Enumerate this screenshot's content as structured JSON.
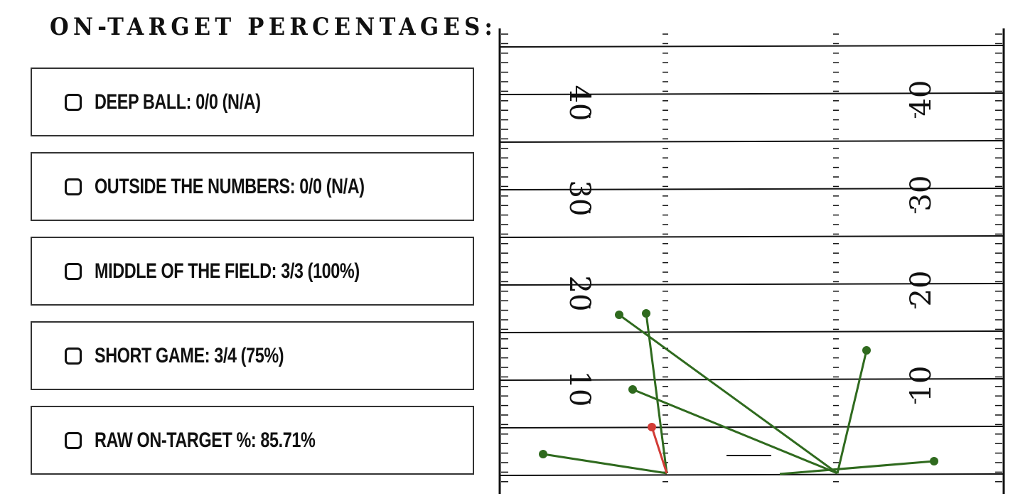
{
  "heading": "ON-TARGET PERCENTAGES:",
  "stats": [
    {
      "label": "DEEP BALL: 0/0 (N/A)",
      "checked": false
    },
    {
      "label": "OUTSIDE THE NUMBERS: 0/0 (N/A)",
      "checked": false
    },
    {
      "label": "MIDDLE OF THE FIELD: 3/3 (100%)",
      "checked": false
    },
    {
      "label": "SHORT GAME: 3/4 (75%)",
      "checked": false
    },
    {
      "label": "RAW ON-TARGET %: 85.71%",
      "checked": false
    }
  ],
  "field": {
    "left_numbers": [
      "40",
      "30",
      "20",
      "10"
    ],
    "right_numbers": [
      "40",
      "30",
      "20",
      "10"
    ],
    "colors": {
      "on_target": "#2f6a1e",
      "off_target": "#d23b35",
      "lines": "#111111"
    }
  }
}
